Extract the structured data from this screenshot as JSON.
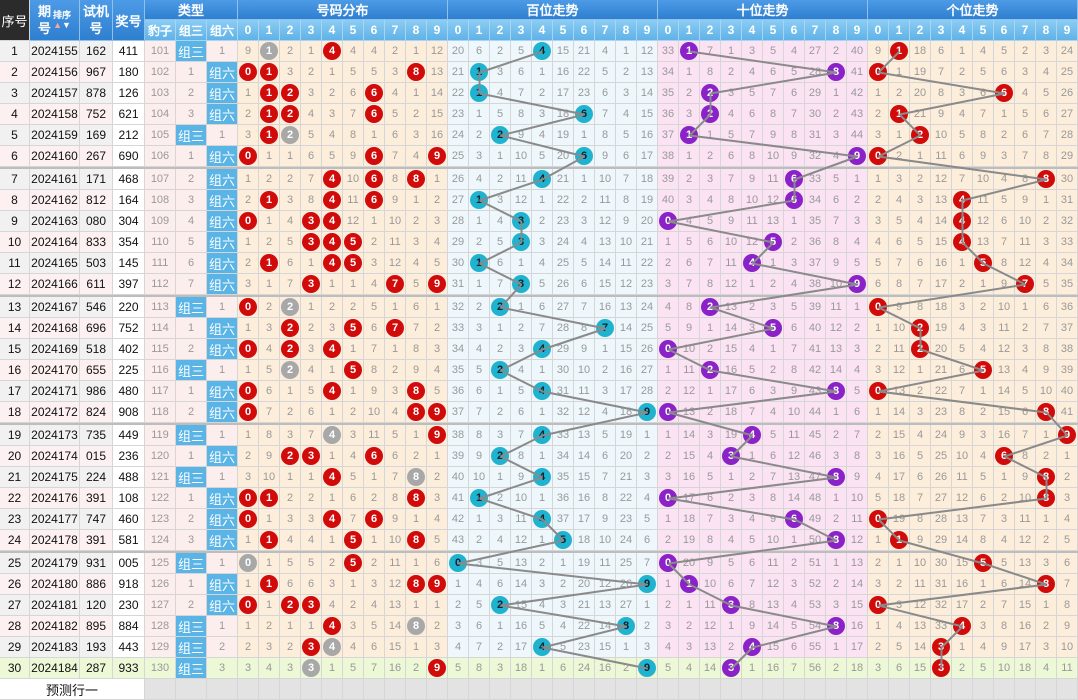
{
  "header": {
    "seq": "序号",
    "issue_top": "期",
    "issue_bottom": "号",
    "sort_label": "排序",
    "sort_up_icon": "arrow-up-icon",
    "sort_down_icon": "arrow-down-icon",
    "test_top": "试机",
    "test_bottom": "号",
    "draw": "奖号",
    "type": "类型",
    "type_cols": [
      "豹子",
      "组三",
      "组六"
    ],
    "sections": [
      "号码分布",
      "百位走势",
      "十位走势",
      "个位走势"
    ],
    "digits": [
      "0",
      "1",
      "2",
      "3",
      "4",
      "5",
      "6",
      "7",
      "8",
      "9"
    ]
  },
  "type_labels": {
    "z3": "组三",
    "z6": "组六"
  },
  "first_row": {
    "type": [
      101,
      null,
      1
    ],
    "distribution": [
      9,
      1,
      2,
      1,
      4,
      4,
      4,
      2,
      1,
      12
    ],
    "hundreds": [
      20,
      6,
      2,
      5,
      4,
      15,
      21,
      4,
      1,
      12
    ],
    "tens": [
      33,
      1,
      7,
      1,
      3,
      5,
      4,
      27,
      2,
      40
    ],
    "units": [
      9,
      1,
      18,
      6,
      1,
      4,
      5,
      2,
      3,
      24
    ]
  },
  "rows": [
    {
      "seq": "1",
      "issue": "2024155",
      "test": "162",
      "draw": "411"
    },
    {
      "seq": "2",
      "issue": "2024156",
      "test": "967",
      "draw": "180"
    },
    {
      "seq": "3",
      "issue": "2024157",
      "test": "878",
      "draw": "126"
    },
    {
      "seq": "4",
      "issue": "2024158",
      "test": "752",
      "draw": "621"
    },
    {
      "seq": "5",
      "issue": "2024159",
      "test": "169",
      "draw": "212"
    },
    {
      "seq": "6",
      "issue": "2024160",
      "test": "267",
      "draw": "690"
    },
    {
      "seq": "7",
      "issue": "2024161",
      "test": "171",
      "draw": "468"
    },
    {
      "seq": "8",
      "issue": "2024162",
      "test": "812",
      "draw": "164"
    },
    {
      "seq": "9",
      "issue": "2024163",
      "test": "080",
      "draw": "304"
    },
    {
      "seq": "10",
      "issue": "2024164",
      "test": "833",
      "draw": "354"
    },
    {
      "seq": "11",
      "issue": "2024165",
      "test": "503",
      "draw": "145"
    },
    {
      "seq": "12",
      "issue": "2024166",
      "test": "611",
      "draw": "397"
    },
    {
      "seq": "13",
      "issue": "2024167",
      "test": "546",
      "draw": "220"
    },
    {
      "seq": "14",
      "issue": "2024168",
      "test": "696",
      "draw": "752"
    },
    {
      "seq": "15",
      "issue": "2024169",
      "test": "518",
      "draw": "402"
    },
    {
      "seq": "16",
      "issue": "2024170",
      "test": "655",
      "draw": "225"
    },
    {
      "seq": "17",
      "issue": "2024171",
      "test": "986",
      "draw": "480"
    },
    {
      "seq": "18",
      "issue": "2024172",
      "test": "824",
      "draw": "908"
    },
    {
      "seq": "19",
      "issue": "2024173",
      "test": "735",
      "draw": "449"
    },
    {
      "seq": "20",
      "issue": "2024174",
      "test": "015",
      "draw": "236"
    },
    {
      "seq": "21",
      "issue": "2024175",
      "test": "224",
      "draw": "488"
    },
    {
      "seq": "22",
      "issue": "2024176",
      "test": "391",
      "draw": "108"
    },
    {
      "seq": "23",
      "issue": "2024177",
      "test": "747",
      "draw": "460"
    },
    {
      "seq": "24",
      "issue": "2024178",
      "test": "391",
      "draw": "581"
    },
    {
      "seq": "25",
      "issue": "2024179",
      "test": "931",
      "draw": "005"
    },
    {
      "seq": "26",
      "issue": "2024180",
      "test": "886",
      "draw": "918"
    },
    {
      "seq": "27",
      "issue": "2024181",
      "test": "120",
      "draw": "230"
    },
    {
      "seq": "28",
      "issue": "2024182",
      "test": "895",
      "draw": "884"
    },
    {
      "seq": "29",
      "issue": "2024183",
      "test": "193",
      "draw": "443"
    },
    {
      "seq": "30",
      "issue": "2024184",
      "test": "287",
      "draw": "933"
    }
  ],
  "footer": {
    "predict_label": "预测行一"
  },
  "colors": {
    "red_ball": "#d10a0a",
    "repeat_ball": "#a8a8a8",
    "hundreds_ball": "#1fb3cf",
    "tens_ball": "#8a22c8",
    "units_ball": "#d10a0a",
    "distribution_bg": "#fdeedb",
    "hundreds_bg": "#eef7fc",
    "tens_bg": "#fbe3f4",
    "units_bg": "#fdeedb",
    "last_row_bg": "#ecf8d6",
    "line": "#8a8a8a"
  }
}
